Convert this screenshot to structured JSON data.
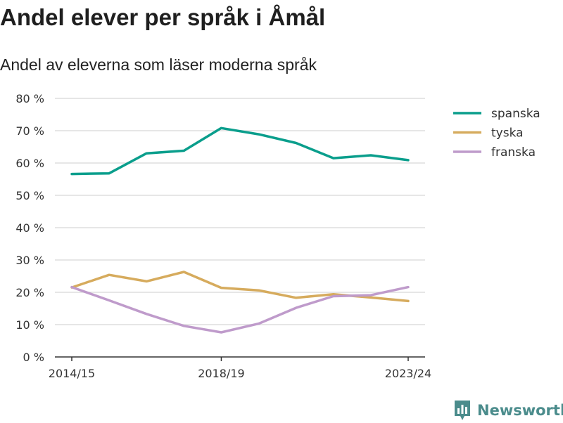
{
  "header": {
    "title": "Andel elever per språk i Åmål",
    "subtitle": "Andel av eleverna som läser moderna språk"
  },
  "brand": {
    "name": "Newsworthy",
    "icon": "newsworthy-logo-icon",
    "color": "#4b8c8c"
  },
  "chart_data": {
    "type": "line",
    "title": "Andel elever per språk i Åmål",
    "subtitle": "Andel av eleverna som läser moderna språk",
    "xlabel": "",
    "ylabel": "",
    "x": [
      "2014/15",
      "2015/16",
      "2016/17",
      "2017/18",
      "2018/19",
      "2019/20",
      "2020/21",
      "2021/22",
      "2022/23",
      "2023/24"
    ],
    "x_tick_labels": [
      "2014/15",
      "2018/19",
      "2023/24"
    ],
    "ylim": [
      0,
      80
    ],
    "y_ticks": [
      0,
      10,
      20,
      30,
      40,
      50,
      60,
      70,
      80
    ],
    "y_tick_labels": [
      "0 %",
      "10 %",
      "20 %",
      "30 %",
      "40 %",
      "50 %",
      "60 %",
      "70 %",
      "80 %"
    ],
    "grid": true,
    "legend_position": "top-right",
    "series": [
      {
        "name": "spanska",
        "color": "#0a9e8c",
        "values": [
          56.6,
          56.8,
          63.0,
          63.8,
          70.8,
          68.9,
          66.2,
          61.5,
          62.4,
          60.9
        ]
      },
      {
        "name": "tyska",
        "color": "#d6ab5d",
        "values": [
          21.5,
          25.4,
          23.4,
          26.3,
          21.4,
          20.6,
          18.3,
          19.4,
          18.4,
          17.3
        ]
      },
      {
        "name": "franska",
        "color": "#bf9bcb",
        "values": [
          21.6,
          17.5,
          13.3,
          9.6,
          7.6,
          10.3,
          15.2,
          18.8,
          19.1,
          21.6
        ]
      }
    ]
  }
}
